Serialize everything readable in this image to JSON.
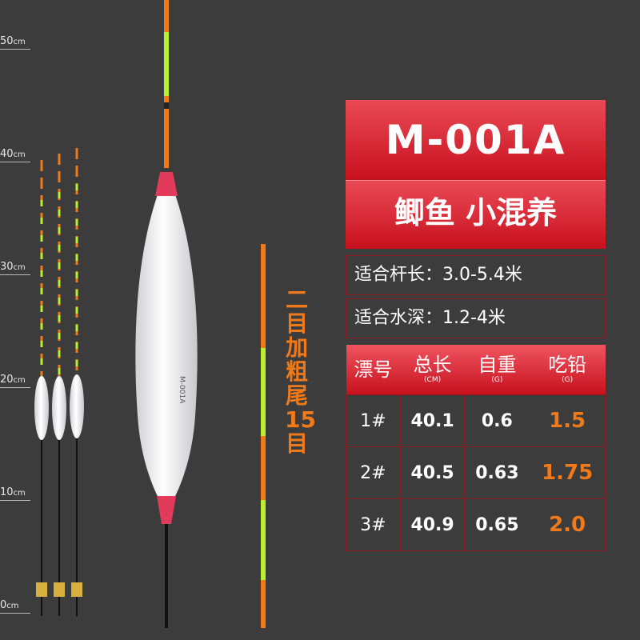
{
  "ruler": {
    "unit": "cm",
    "ticks": [
      "50",
      "40",
      "30",
      "20",
      "10",
      "0"
    ]
  },
  "vertical_label": [
    "二",
    "目",
    "加",
    "粗",
    "尾",
    "15",
    "目"
  ],
  "product": {
    "model": "M-001A",
    "subtitle": "鲫鱼 小混养",
    "rod_length": "适合杆长：3.0-5.4米",
    "water_depth": "适合水深：1.2-4米",
    "float_body_text": "M-001A"
  },
  "spec_table": {
    "headers": [
      {
        "label": "漂号",
        "unit": ""
      },
      {
        "label": "总长",
        "unit": "(CM)"
      },
      {
        "label": "自重",
        "unit": "(G)"
      },
      {
        "label": "吃铅",
        "unit": "(G)"
      }
    ],
    "rows": [
      [
        "1#",
        "40.1",
        "0.6",
        "1.5"
      ],
      [
        "2#",
        "40.5",
        "0.63",
        "1.75"
      ],
      [
        "3#",
        "40.9",
        "0.65",
        "2.0"
      ]
    ]
  },
  "colors": {
    "accent_red": "#d41a28",
    "orange": "#f07a1a",
    "lime": "#b8f030",
    "background": "#3c3c3c"
  }
}
